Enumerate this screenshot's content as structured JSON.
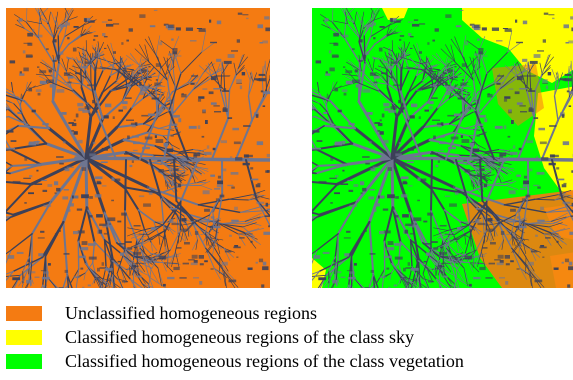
{
  "colors": {
    "unclassified": "#f47b12",
    "sky": "#ffff00",
    "vegetation": "#00ff00",
    "branch_dark": "#3c4058",
    "branch_mid": "#6e7590"
  },
  "panels": [
    {
      "name": "unclassified-regions-image",
      "variant": "unclassified"
    },
    {
      "name": "classified-regions-image",
      "variant": "classified"
    }
  ],
  "legend": {
    "items": [
      {
        "label": "Unclassified homogeneous regions",
        "color": "#f47b12"
      },
      {
        "label": "Classified homogeneous regions of the class sky",
        "color": "#ffff00"
      },
      {
        "label": "Classified homogeneous regions of the class vegetation",
        "color": "#00ff00"
      }
    ]
  }
}
